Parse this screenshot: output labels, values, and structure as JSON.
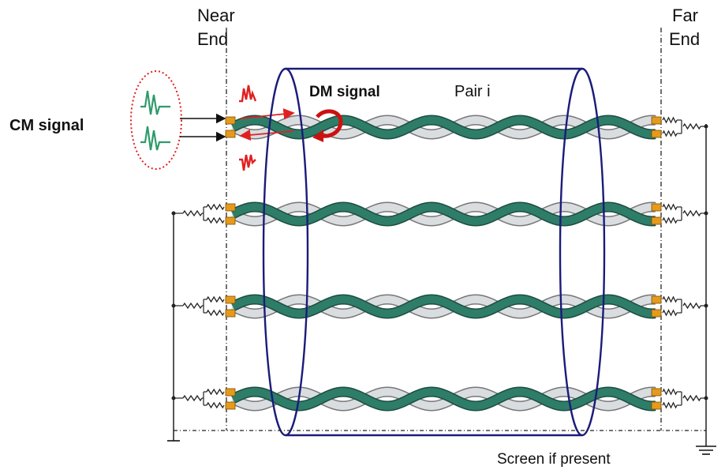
{
  "labels": {
    "near_end_line1": "Near",
    "near_end_line2": "End",
    "far_end_line1": "Far",
    "far_end_line2": "End",
    "cm_signal": "CM signal",
    "dm_signal": "DM signal",
    "pair_i": "Pair i",
    "screen": "Screen if present"
  },
  "pairs": [
    {
      "id": "pair-1"
    },
    {
      "id": "pair-2"
    },
    {
      "id": "pair-3"
    },
    {
      "id": "pair-4"
    }
  ],
  "colors": {
    "green_wire": "#2e7d68",
    "white_wire": "#d9dde0",
    "screen": "#1b1b7a",
    "signal_arrow": "#e02020",
    "connector": "#e69a1c",
    "cm_ellipse": "#e02020",
    "cm_waveform": "#2e9b6a"
  },
  "icons": {
    "ground": "ground-icon",
    "resistor": "resistor-icon",
    "rotation_arrow": "rotation-arrow-icon"
  }
}
